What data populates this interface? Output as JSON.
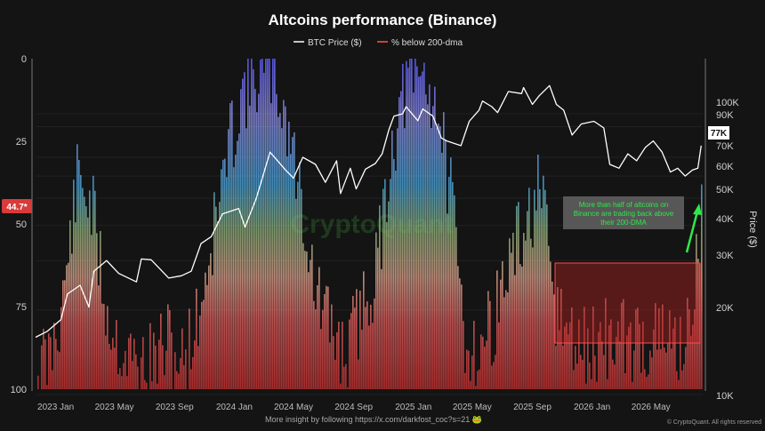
{
  "chart_data": {
    "type": "line",
    "title": "Altcoins performance (Binance)",
    "legend": [
      "BTC Price ($)",
      "% below 200-dma"
    ],
    "left_axis": {
      "ticks": [
        "0",
        "25",
        "50",
        "75",
        "100"
      ],
      "range": [
        0,
        100
      ],
      "inverted": true
    },
    "right_axis": {
      "label": "Price ($)",
      "ticks": [
        "100K",
        "90K",
        "70K",
        "60K",
        "50K",
        "40K",
        "30K",
        "20K",
        "10K"
      ],
      "tick_values": [
        100000,
        90000,
        70000,
        60000,
        50000,
        40000,
        30000,
        20000,
        10000
      ],
      "range": [
        10000,
        130000
      ],
      "scale": "log"
    },
    "x_ticks": [
      "2023 Jan",
      "2023 May",
      "2023 Sep",
      "2024 Jan",
      "2024 May",
      "2024 Sep",
      "2025 Jan",
      "2025 May",
      "2025 Sep",
      "2026 Jan",
      "2026 May"
    ],
    "x_range": [
      "2022-11-21",
      "2026-08-15"
    ],
    "btc_series": {
      "name": "BTC Price ($)",
      "x": [
        "2022-11-21",
        "2022-12-15",
        "2023-01-12",
        "2023-01-25",
        "2023-02-20",
        "2023-03-10",
        "2023-03-20",
        "2023-04-15",
        "2023-05-10",
        "2023-06-15",
        "2023-06-25",
        "2023-07-15",
        "2023-08-20",
        "2023-09-15",
        "2023-10-05",
        "2023-10-25",
        "2023-11-15",
        "2023-12-08",
        "2024-01-10",
        "2024-01-23",
        "2024-02-15",
        "2024-03-14",
        "2024-04-15",
        "2024-05-01",
        "2024-05-20",
        "2024-06-15",
        "2024-07-05",
        "2024-07-28",
        "2024-08-05",
        "2024-08-25",
        "2024-09-06",
        "2024-09-25",
        "2024-10-15",
        "2024-10-29",
        "2024-11-12",
        "2024-11-22",
        "2024-12-10",
        "2024-12-17",
        "2025-01-10",
        "2025-01-20",
        "2025-02-10",
        "2025-02-27",
        "2025-03-10",
        "2025-04-08",
        "2025-04-25",
        "2025-05-15",
        "2025-05-22",
        "2025-06-10",
        "2025-06-22",
        "2025-07-14",
        "2025-08-10",
        "2025-08-14",
        "2025-09-01",
        "2025-09-15",
        "2025-10-06",
        "2025-10-20",
        "2025-11-04",
        "2025-11-21",
        "2025-12-10",
        "2026-01-05",
        "2026-01-25",
        "2026-02-06",
        "2026-02-25",
        "2026-03-15",
        "2026-04-02",
        "2026-04-20",
        "2026-05-06",
        "2026-05-24",
        "2026-06-10",
        "2026-06-25",
        "2026-07-10",
        "2026-07-25",
        "2026-08-05",
        "2026-08-12"
      ],
      "y": [
        16000,
        16800,
        18500,
        22800,
        24500,
        20500,
        27500,
        30000,
        27000,
        25200,
        30400,
        30200,
        26000,
        26500,
        27500,
        34500,
        36500,
        44000,
        46000,
        39500,
        50000,
        73000,
        63000,
        59000,
        70000,
        66000,
        57000,
        68000,
        52000,
        64000,
        54000,
        63500,
        66500,
        72000,
        88000,
        98000,
        100000,
        106000,
        94500,
        104000,
        98000,
        82000,
        80000,
        77000,
        94000,
        103000,
        111000,
        106000,
        101000,
        120000,
        118000,
        124000,
        108000,
        116000,
        126000,
        108000,
        103000,
        84000,
        92000,
        94000,
        89000,
        66000,
        64000,
        72000,
        68000,
        76000,
        80000,
        73000,
        62000,
        64000,
        60000,
        63000,
        64000,
        77000
      ]
    },
    "altcoin_series": {
      "name": "% below 200-dma",
      "x": [
        "2022-12",
        "2023-01",
        "2023-02",
        "2023-03",
        "2023-04",
        "2023-05",
        "2023-06",
        "2023-07",
        "2023-08",
        "2023-09",
        "2023-10",
        "2023-11",
        "2023-12",
        "2024-01",
        "2024-02",
        "2024-03",
        "2024-04",
        "2024-05",
        "2024-06",
        "2024-07",
        "2024-08",
        "2024-09",
        "2024-10",
        "2024-11",
        "2024-12",
        "2025-01",
        "2025-02",
        "2025-03",
        "2025-04",
        "2025-05",
        "2025-06",
        "2025-07",
        "2025-08",
        "2025-09",
        "2025-10",
        "2025-11",
        "2025-12",
        "2026-01",
        "2026-02",
        "2026-03",
        "2026-04",
        "2026-05",
        "2026-06",
        "2026-07",
        "2026-08"
      ],
      "y": [
        92,
        72,
        35,
        45,
        78,
        88,
        93,
        92,
        86,
        92,
        80,
        55,
        30,
        10,
        5,
        3,
        18,
        42,
        72,
        82,
        90,
        76,
        65,
        28,
        8,
        5,
        12,
        40,
        85,
        88,
        78,
        62,
        52,
        40,
        75,
        85,
        88,
        86,
        84,
        86,
        85,
        85,
        86,
        84,
        44.7
      ]
    },
    "current_values": {
      "btc": "77K",
      "altcoins": "44.7*"
    },
    "annotation": "More than half of altcoins on Binance are trading back above their 200-DMA",
    "watermark": "CryptoQuant",
    "footer": "More insight by following https://x.com/darkfost_coc?s=21 🐸",
    "credit": "© CryptoQuant. All rights reserved",
    "colors": {
      "background": "#141414",
      "btc_line": "#ffffff",
      "bar_high": "#d04040",
      "bar_low": "#6a6aff",
      "highlight_box": "#b82222",
      "arrow": "#2ee84a",
      "current_badge": "#d93a3a"
    }
  }
}
